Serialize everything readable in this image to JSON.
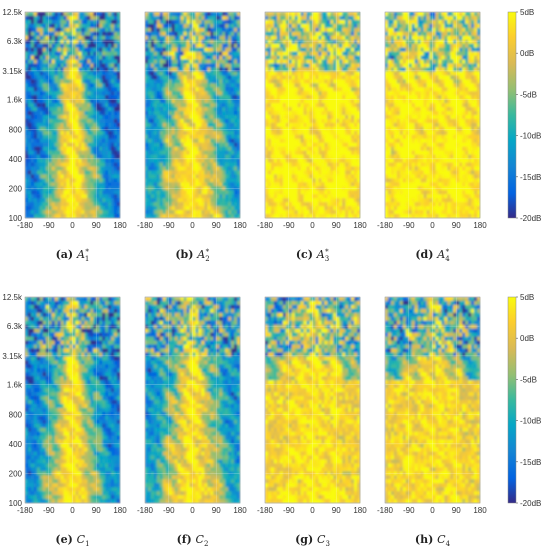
{
  "chart_data": {
    "type": "heatmap",
    "layout": "2 rows x 4 panels, shared colorbar per row",
    "x_ticks": [
      "-180",
      "-90",
      "0",
      "90",
      "180"
    ],
    "xlim": [
      -180,
      180
    ],
    "y_ticks": [
      "100",
      "200",
      "400",
      "800",
      "1.6k",
      "3.15k",
      "6.3k",
      "12.5k"
    ],
    "y_tick_values": [
      100,
      200,
      400,
      800,
      1600,
      3150,
      6300,
      12500
    ],
    "ylim": [
      100,
      12500
    ],
    "y_scale": "log",
    "colorbar": {
      "ticks": [
        "5dB",
        "0dB",
        "-5dB",
        "-10dB",
        "-15dB",
        "-20dB"
      ],
      "tick_values": [
        5,
        0,
        -5,
        -10,
        -15,
        -20
      ],
      "range": [
        -20,
        5
      ],
      "colormap": "parula",
      "colors": [
        "#352a87",
        "#0363e1",
        "#1485d4",
        "#06a7c6",
        "#38b99e",
        "#92bf73",
        "#d9ba56",
        "#fcce2e",
        "#f9fb0e"
      ]
    },
    "panels": [
      {
        "letter": "(a)",
        "name": "A",
        "sub": "1",
        "sup": "*"
      },
      {
        "letter": "(b)",
        "name": "A",
        "sub": "2",
        "sup": "*"
      },
      {
        "letter": "(c)",
        "name": "A",
        "sub": "3",
        "sup": "*"
      },
      {
        "letter": "(d)",
        "name": "A",
        "sub": "4",
        "sup": "*"
      },
      {
        "letter": "(e)",
        "name": "C",
        "sub": "1",
        "sup": ""
      },
      {
        "letter": "(f)",
        "name": "C",
        "sub": "2",
        "sup": ""
      },
      {
        "letter": "(g)",
        "name": "C",
        "sub": "3",
        "sup": ""
      },
      {
        "letter": "(h)",
        "name": "C",
        "sub": "4",
        "sup": ""
      }
    ]
  }
}
